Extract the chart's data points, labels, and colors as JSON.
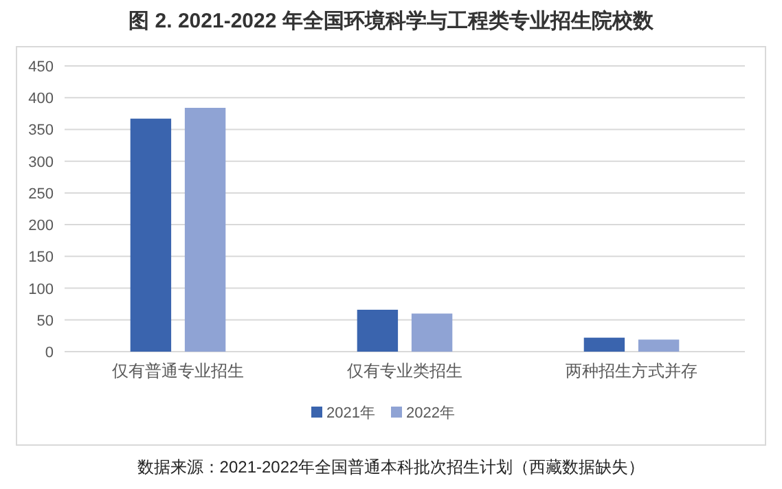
{
  "chart_data": {
    "type": "bar",
    "title": "图 2. 2021-2022 年全国环境科学与工程类专业招生院校数",
    "categories": [
      "仅有普通专业招生",
      "仅有专业类招生",
      "两种招生方式并存"
    ],
    "series": [
      {
        "name": "2021年",
        "color": "#3a64ae",
        "values": [
          367,
          66,
          22
        ]
      },
      {
        "name": "2022年",
        "color": "#8fa3d4",
        "values": [
          384,
          60,
          19
        ]
      }
    ],
    "ylim": [
      0,
      450
    ],
    "yticks": [
      0,
      50,
      100,
      150,
      200,
      250,
      300,
      350,
      400,
      450
    ],
    "grid": "y",
    "legend": "bottom",
    "annotations": [
      "数据来源：2021-2022年全国普通本科批次招生计划（西藏数据缺失）"
    ]
  }
}
